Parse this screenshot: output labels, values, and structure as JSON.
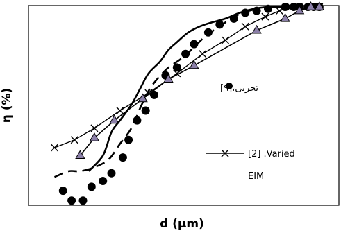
{
  "chart_data": {
    "type": "line",
    "xlabel": "d (μm)",
    "ylabel": "η (%)",
    "xlim": [
      0,
      100
    ],
    "ylim": [
      0,
      100
    ],
    "grid": false,
    "legend": [
      {
        "marker": "dot",
        "text": "تجربی،[۹]"
      },
      {
        "marker": "cross-line",
        "text": "[2] .Varied",
        "text2": "EIM"
      }
    ],
    "series": [
      {
        "style": "dots",
        "color": "#000000",
        "points": [
          [
            8,
            6
          ],
          [
            11,
            1
          ],
          [
            15,
            1
          ],
          [
            18,
            8
          ],
          [
            22,
            11
          ],
          [
            25,
            15
          ],
          [
            29,
            23
          ],
          [
            31,
            32
          ],
          [
            34,
            42
          ],
          [
            37,
            47
          ],
          [
            40,
            55
          ],
          [
            44,
            65
          ],
          [
            48,
            69
          ],
          [
            51,
            76
          ],
          [
            54,
            81
          ],
          [
            59,
            87
          ],
          [
            63,
            91
          ],
          [
            68,
            94
          ],
          [
            72,
            97
          ],
          [
            76,
            98
          ],
          [
            80,
            99
          ],
          [
            86,
            100
          ],
          [
            89,
            100
          ],
          [
            91,
            100
          ],
          [
            94,
            100
          ],
          [
            96,
            100
          ],
          [
            98,
            100
          ]
        ]
      },
      {
        "style": "x-line",
        "color": "#000000",
        "points": [
          [
            5,
            28
          ],
          [
            12,
            32
          ],
          [
            19,
            38
          ],
          [
            28,
            47
          ],
          [
            38,
            56
          ],
          [
            48,
            66
          ],
          [
            57,
            76
          ],
          [
            65,
            83
          ],
          [
            72,
            90
          ],
          [
            79,
            95
          ],
          [
            84,
            98
          ],
          [
            88,
            100
          ],
          [
            93,
            100
          ],
          [
            96,
            100
          ],
          [
            98,
            100
          ]
        ]
      },
      {
        "style": "triangle-line",
        "color": "#000000",
        "marker_fill": "#8b7fa8",
        "points": [
          [
            14,
            24
          ],
          [
            19,
            33
          ],
          [
            26,
            42
          ],
          [
            36,
            53
          ],
          [
            45,
            63
          ],
          [
            54,
            70
          ],
          [
            76,
            88
          ],
          [
            86,
            94
          ],
          [
            91,
            98
          ],
          [
            95,
            100
          ],
          [
            98,
            100
          ]
        ]
      },
      {
        "style": "solid",
        "color": "#000000",
        "points": [
          [
            17,
            16
          ],
          [
            22,
            24
          ],
          [
            25,
            36
          ],
          [
            28,
            42
          ],
          [
            32,
            50
          ],
          [
            35,
            58
          ],
          [
            38,
            66
          ],
          [
            42,
            72
          ],
          [
            45,
            78
          ],
          [
            48,
            82
          ],
          [
            52,
            87
          ],
          [
            56,
            90
          ],
          [
            60,
            92
          ],
          [
            65,
            94
          ],
          [
            70,
            97
          ],
          [
            75,
            99
          ],
          [
            80,
            100
          ],
          [
            85,
            100
          ],
          [
            90,
            100
          ]
        ]
      },
      {
        "style": "dashed",
        "color": "#000000",
        "points": [
          [
            5,
            13
          ],
          [
            10,
            16
          ],
          [
            14,
            16
          ],
          [
            19,
            18
          ],
          [
            24,
            22
          ],
          [
            28,
            30
          ],
          [
            32,
            38
          ],
          [
            35,
            48
          ],
          [
            38,
            57
          ],
          [
            41,
            63
          ],
          [
            45,
            69
          ],
          [
            49,
            73
          ],
          [
            53,
            78
          ],
          [
            58,
            85
          ],
          [
            63,
            90
          ],
          [
            67,
            94
          ],
          [
            71,
            97
          ],
          [
            76,
            99
          ]
        ]
      }
    ]
  }
}
